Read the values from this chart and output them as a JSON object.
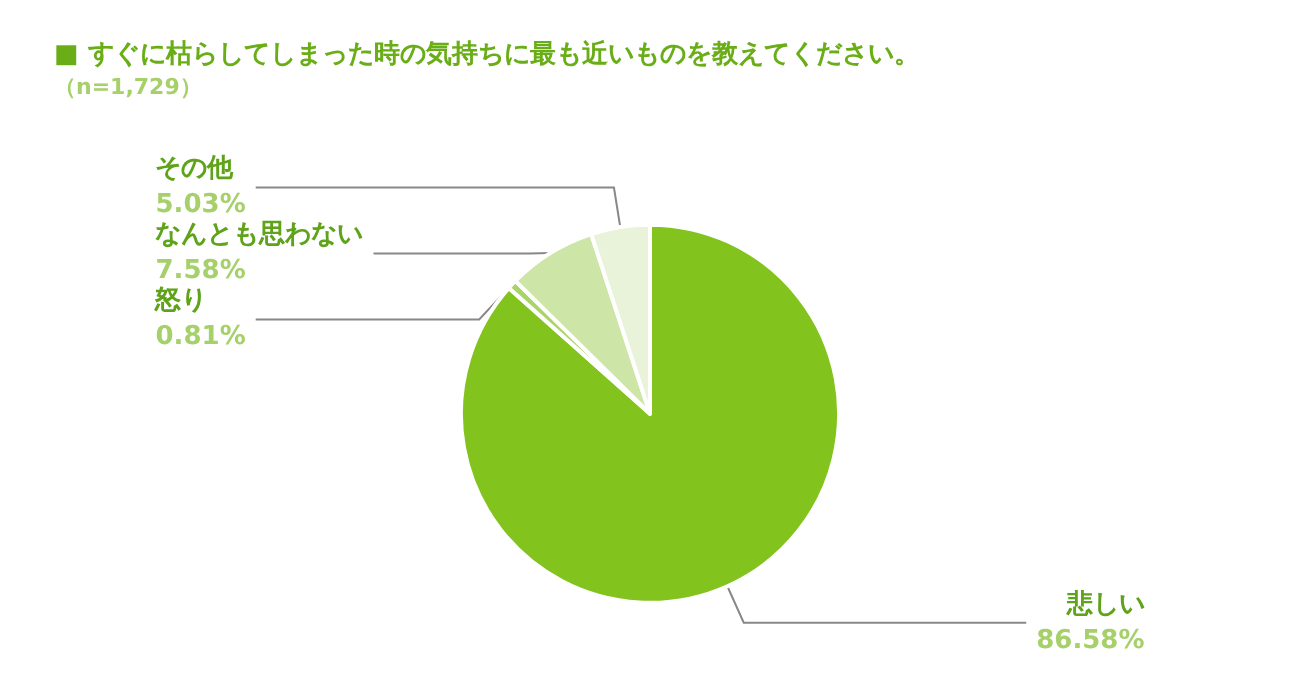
{
  "chart_data": {
    "type": "pie",
    "title": "■ すぐに枯らしてしまった時の気持ちに最も近いものを教えてください。",
    "subtitle": "（n=1,729）",
    "categories": [
      "悲しい",
      "怒り",
      "なんとも思わない",
      "その他"
    ],
    "values": [
      86.58,
      0.81,
      7.58,
      5.03
    ],
    "value_labels": [
      "86.58%",
      "0.81%",
      "7.58%",
      "5.03%"
    ],
    "colors": [
      "#82c31e",
      "#a9d466",
      "#cde6a8",
      "#e8f3d9"
    ],
    "legend": false
  }
}
